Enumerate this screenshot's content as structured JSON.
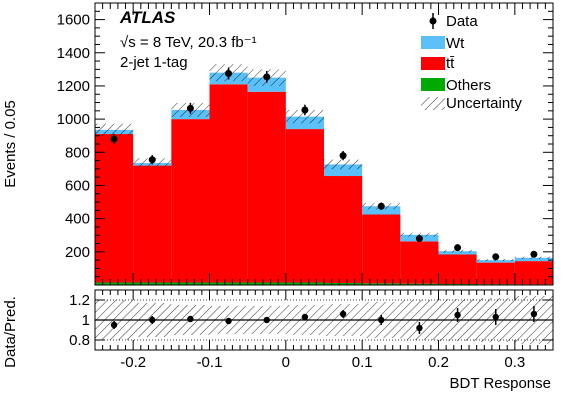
{
  "chart_data": [
    {
      "type": "bar",
      "subtype": "stacked-histogram",
      "title": "ATLAS",
      "annotations": [
        "√s = 8 TeV, 20.3 fb⁻¹",
        "2-jet 1-tag"
      ],
      "xlabel": "BDT Response",
      "ylabel": "Events / 0.05",
      "xlim": [
        -0.25,
        0.35
      ],
      "ylim": [
        0,
        1700
      ],
      "bin_edges": [
        -0.25,
        -0.2,
        -0.15,
        -0.1,
        -0.05,
        0.0,
        0.05,
        0.1,
        0.15,
        0.2,
        0.25,
        0.3,
        0.35
      ],
      "series": [
        {
          "name": "Others",
          "color": "#00aa00",
          "values": [
            15,
            15,
            15,
            15,
            15,
            15,
            12,
            10,
            8,
            6,
            5,
            4
          ]
        },
        {
          "name": "tt̄",
          "color": "#ff0000",
          "values": [
            895,
            705,
            985,
            1195,
            1150,
            925,
            645,
            415,
            255,
            178,
            130,
            140
          ]
        },
        {
          "name": "Wt",
          "color": "#5bc0f8",
          "values": [
            25,
            15,
            55,
            70,
            85,
            75,
            70,
            50,
            40,
            20,
            15,
            20
          ]
        }
      ],
      "data": {
        "name": "Data",
        "x": [
          -0.225,
          -0.175,
          -0.125,
          -0.075,
          -0.025,
          0.025,
          0.075,
          0.125,
          0.175,
          0.225,
          0.275,
          0.325
        ],
        "y": [
          880,
          755,
          1065,
          1275,
          1255,
          1055,
          780,
          475,
          280,
          225,
          170,
          185
        ],
        "yerr": [
          30,
          28,
          33,
          36,
          35,
          32,
          28,
          22,
          17,
          15,
          13,
          14
        ]
      },
      "uncertainty_label": "Uncertainty",
      "legend_position": "top-right",
      "xticks": [
        -0.2,
        -0.1,
        0,
        0.1,
        0.2,
        0.3
      ],
      "xtick_labels": [
        "-0.2",
        "-0.1",
        "0",
        "0.1",
        "0.2",
        "0.3"
      ],
      "yticks": [
        200,
        400,
        600,
        800,
        1000,
        1200,
        1400,
        1600
      ],
      "ytick_labels": [
        "200",
        "400",
        "600",
        "800",
        "1000",
        "1200",
        "1400",
        "1600"
      ]
    },
    {
      "type": "scatter",
      "ylabel": "Data/Pred.",
      "xlabel": "BDT Response",
      "xlim": [
        -0.25,
        0.35
      ],
      "ylim": [
        0.7,
        1.3
      ],
      "x": [
        -0.225,
        -0.175,
        -0.125,
        -0.075,
        -0.025,
        0.025,
        0.075,
        0.125,
        0.175,
        0.225,
        0.275,
        0.325
      ],
      "y": [
        0.95,
        1.0,
        1.01,
        0.99,
        1.0,
        1.03,
        1.06,
        1.0,
        0.92,
        1.05,
        1.03,
        1.06
      ],
      "yerr": [
        0.04,
        0.04,
        0.03,
        0.03,
        0.03,
        0.03,
        0.04,
        0.05,
        0.06,
        0.07,
        0.08,
        0.08
      ],
      "uncertainty_band": [
        0.2,
        0.17,
        0.15,
        0.14,
        0.14,
        0.15,
        0.16,
        0.18,
        0.2,
        0.21,
        0.22,
        0.24
      ],
      "yticks": [
        0.8,
        1,
        1.2
      ],
      "ytick_labels": [
        "0.8",
        "1",
        "1.2"
      ],
      "reference_lines": [
        0.8,
        1,
        1.2
      ]
    }
  ]
}
